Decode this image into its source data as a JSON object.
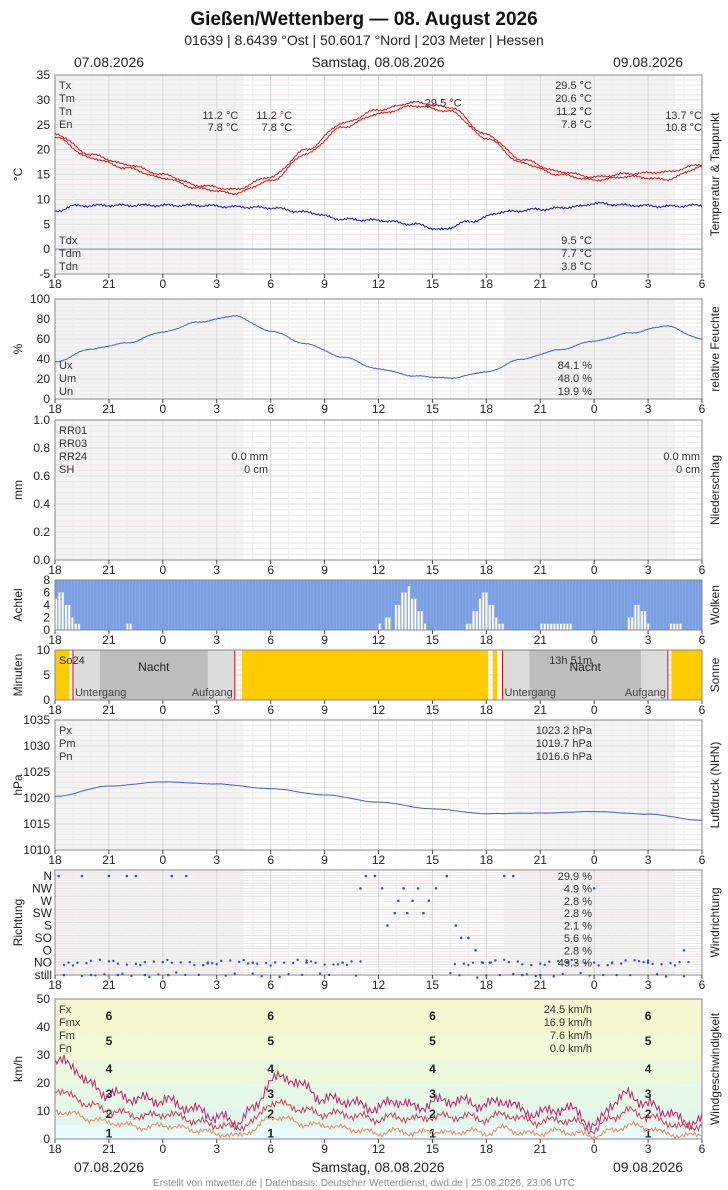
{
  "header": {
    "title": "Gießen/Wettenberg  —  08. August 2026",
    "subtitle": "01639  |  8.6439 °Ost  |  50.6017 °Nord  |  203 Meter  |  Hessen",
    "date_left": "07.08.2026",
    "date_center": "Samstag, 08.08.2026",
    "date_right": "09.08.2026"
  },
  "footer": "Erstellt von mtwetter.de | Datenbasis: Deutscher Wetterdienst, dwd.de | 25.08.2026, 23:06 UTC",
  "x_axis": {
    "start_hour": 18,
    "span_hours": 36,
    "tick_labels": [
      "18",
      "21",
      "0",
      "3",
      "6",
      "9",
      "12",
      "15",
      "18",
      "21",
      "0",
      "3",
      "6"
    ]
  },
  "colors": {
    "temp": "#e0191d",
    "dew": "#1717d0",
    "line": "#3a62d8",
    "cloud": "#7b9fe3",
    "sun": "#ffcc00",
    "night": "#bdbdbd",
    "wind_max": "#c71e6f",
    "wind_mean": "#d0405e",
    "wind_min": "#f08a5a"
  },
  "chart_data": [
    {
      "id": "temperature",
      "type": "line",
      "ylabel": "°C",
      "side_label": "Temperatur & Taupunkt",
      "ylim": [
        -5,
        35
      ],
      "yticks": [
        "35",
        "30",
        "25",
        "20",
        "15",
        "10",
        "5",
        "0",
        "-5"
      ],
      "legend_top": [
        "Tx",
        "Tm",
        "Tn",
        "En"
      ],
      "legend_bottom": [
        "Tdx",
        "Tdm",
        "Tdn"
      ],
      "annotations": [
        {
          "text": "29.5 °C",
          "hour": 15.6,
          "y": 29.5
        },
        {
          "text": "11.2 °C",
          "hour": 4.2,
          "y": 27
        },
        {
          "text": "11.2 °C",
          "hour": 7.2,
          "y": 27
        },
        {
          "text": "7.8 °C",
          "hour": 4.2,
          "y": 24.5
        },
        {
          "text": "7.8 °C",
          "hour": 7.2,
          "y": 24.5
        },
        {
          "text": "13.7 °C",
          "hour": 30,
          "y": 27
        },
        {
          "text": "10.8 °C",
          "hour": 30,
          "y": 24.5
        }
      ],
      "summary_top": [
        "29.5 °C",
        "20.6 °C",
        "11.2 °C",
        "7.8 °C"
      ],
      "summary_bottom": [
        "9.5 °C",
        "7.7 °C",
        "3.8 °C"
      ],
      "series": [
        {
          "name": "Tx",
          "hours": [
            -6,
            -4,
            -2,
            0,
            2,
            4,
            6,
            8,
            10,
            12,
            14,
            16,
            18,
            20,
            22,
            24,
            26,
            28,
            30
          ],
          "values": [
            23.2,
            19,
            17,
            15,
            12.8,
            12,
            14.5,
            20,
            25.3,
            28,
            29.5,
            28.5,
            23,
            18,
            15.6,
            14.5,
            15.2,
            15.5,
            17
          ]
        },
        {
          "name": "Tn",
          "hours": [
            -6,
            -4,
            -2,
            0,
            2,
            4,
            6,
            8,
            10,
            12,
            14,
            16,
            18,
            20,
            22,
            24,
            26,
            28,
            30
          ],
          "values": [
            22.5,
            18.3,
            16.3,
            14.3,
            12.2,
            11.2,
            13.7,
            19.2,
            24.5,
            27.2,
            28.8,
            27.7,
            22.3,
            17.3,
            15,
            13.9,
            14.6,
            14,
            16.5
          ]
        },
        {
          "name": "Td",
          "hours": [
            -6,
            -5,
            -3,
            0,
            2,
            4,
            6,
            8,
            10,
            12,
            14,
            15.5,
            17,
            19,
            21,
            23,
            24,
            26,
            28,
            30
          ],
          "values": [
            7.5,
            8.7,
            8.8,
            8.8,
            8.8,
            8.5,
            8.3,
            7.4,
            6,
            5.8,
            5,
            3.9,
            5.5,
            7.5,
            8,
            8.5,
            9.2,
            8.8,
            8.6,
            8.8
          ]
        }
      ]
    },
    {
      "id": "humidity",
      "type": "line",
      "ylabel": "%",
      "side_label": "relative Feuchte",
      "ylim": [
        0,
        100
      ],
      "yticks": [
        "100",
        "80",
        "60",
        "40",
        "20",
        "0"
      ],
      "legend": [
        "Ux",
        "Um",
        "Un"
      ],
      "summary": [
        "84.1 %",
        "48.0 %",
        "19.9 %"
      ],
      "series": [
        {
          "name": "U",
          "hours": [
            -6,
            -4,
            -2,
            0,
            2,
            4,
            6,
            8,
            10,
            12,
            14,
            16,
            18,
            20,
            22,
            24,
            26,
            28,
            30
          ],
          "values": [
            37,
            50,
            56,
            67,
            77,
            83,
            68,
            55,
            42,
            30,
            23,
            21,
            27,
            40,
            49,
            58,
            66,
            73,
            60
          ]
        }
      ]
    },
    {
      "id": "precipitation",
      "type": "line",
      "ylabel": "mm",
      "side_label": "Niederschlag",
      "ylim": [
        0,
        1
      ],
      "yticks": [
        "1.0",
        "0.8",
        "0.6",
        "0.4",
        "0.2",
        "0.0"
      ],
      "legend": [
        "RR01",
        "RR03",
        "RR24",
        "SH"
      ],
      "values_day1": [
        "0.0 mm",
        "0 cm"
      ],
      "values_day2": [
        "0.0 mm",
        "0 cm"
      ]
    },
    {
      "id": "clouds",
      "type": "bar",
      "ylabel": "Achtel",
      "side_label": "Wolken",
      "ylim": [
        0,
        8
      ],
      "yticks": [
        "8",
        "6",
        "4",
        "2",
        "0"
      ],
      "hours": [
        -6,
        -5.7,
        -5.4,
        -5.1,
        -4.8,
        -4.5,
        -3,
        -2,
        1,
        3,
        6,
        8,
        10,
        11.5,
        12,
        12.5,
        13,
        13.3,
        13.6,
        13.9,
        14.2,
        14.5,
        15,
        16,
        17,
        17.3,
        17.6,
        17.9,
        18.2,
        18.5,
        18.8,
        19,
        20,
        21,
        21.3,
        21.6,
        21.9,
        22.2,
        22.5,
        23,
        24,
        25,
        26,
        26.3,
        26.6,
        26.9,
        27.2,
        28,
        28.3,
        28.6
      ],
      "values": [
        5,
        6,
        4,
        2,
        1,
        0,
        0,
        1,
        0,
        0,
        0,
        0,
        0,
        0,
        1,
        2,
        4,
        6,
        7,
        5,
        3,
        1,
        0,
        0,
        1,
        3,
        5,
        6,
        4,
        2,
        1,
        0,
        0,
        1,
        1,
        1,
        1,
        1,
        1,
        0,
        0,
        0,
        2,
        4,
        3,
        1,
        0,
        0,
        1,
        1
      ]
    },
    {
      "id": "sunshine",
      "type": "bar",
      "ylabel": "Minuten",
      "side_label": "Sonne",
      "ylim": [
        0,
        10
      ],
      "yticks": [
        "10",
        "5",
        "0"
      ],
      "legend": [
        "So24"
      ],
      "sun_total": "13h 51m",
      "night_label": "Nacht",
      "sunset_label": "Untergang",
      "sunrise_label": "Aufgang",
      "sunset_hours": [
        -5.0,
        18.9
      ],
      "sunrise_hours": [
        4.0,
        28.1
      ],
      "sun_intervals": [
        [
          -6,
          -5.2
        ],
        [
          4.4,
          18.1
        ],
        [
          18.35,
          18.6
        ],
        [
          28.3,
          30
        ]
      ]
    },
    {
      "id": "pressure",
      "type": "line",
      "ylabel": "hPa",
      "side_label": "Luftdruck (NHN)",
      "ylim": [
        1010,
        1035
      ],
      "yticks": [
        "1035",
        "1030",
        "1025",
        "1020",
        "1015",
        "1010"
      ],
      "legend": [
        "Px",
        "Pm",
        "Pn"
      ],
      "summary": [
        "1023.2 hPa",
        "1019.7 hPa",
        "1016.6 hPa"
      ],
      "series": [
        {
          "name": "P",
          "hours": [
            -6,
            -3,
            0,
            3,
            6,
            9,
            12,
            15,
            18,
            21,
            24,
            27,
            30
          ],
          "values": [
            1020.3,
            1022.3,
            1023.1,
            1022.7,
            1021.8,
            1020.6,
            1019.2,
            1017.9,
            1017,
            1017.1,
            1017.4,
            1016.9,
            1015.7
          ]
        }
      ]
    },
    {
      "id": "wind_direction",
      "type": "scatter",
      "ylabel": "Richtung",
      "side_label": "Windrichtung",
      "categories": [
        "N",
        "NW",
        "W",
        "SW",
        "S",
        "SO",
        "O",
        "NO",
        "still"
      ],
      "summary": [
        "29.9 %",
        "4.9 %",
        "2.8 %",
        "2.8 %",
        "2.1 %",
        "5.6 %",
        "2.8 %",
        "49.3 %"
      ],
      "points": [
        {
          "hour": -5.8,
          "dir": 0
        },
        {
          "hour": -4.5,
          "dir": 0
        },
        {
          "hour": -3,
          "dir": 0
        },
        {
          "hour": -2,
          "dir": 0
        },
        {
          "hour": -1.5,
          "dir": 0
        },
        {
          "hour": 0.5,
          "dir": 0
        },
        {
          "hour": 1.3,
          "dir": 0
        },
        {
          "hour": -5.5,
          "dir": 8
        },
        {
          "hour": -4.0,
          "dir": 8
        },
        {
          "hour": -2.5,
          "dir": 8
        },
        {
          "hour": -1.0,
          "dir": 8
        },
        {
          "hour": 0.3,
          "dir": 8
        },
        {
          "hour": 2.5,
          "dir": 7
        },
        {
          "hour": 5,
          "dir": 7
        },
        {
          "hour": 8,
          "dir": 7
        },
        {
          "hour": 10,
          "dir": 7
        },
        {
          "hour": 11,
          "dir": 1
        },
        {
          "hour": 11.3,
          "dir": 0
        },
        {
          "hour": 11.8,
          "dir": 0
        },
        {
          "hour": 12.2,
          "dir": 1
        },
        {
          "hour": 12.5,
          "dir": 4
        },
        {
          "hour": 12.9,
          "dir": 3
        },
        {
          "hour": 13.1,
          "dir": 2
        },
        {
          "hour": 13.4,
          "dir": 1
        },
        {
          "hour": 13.6,
          "dir": 3
        },
        {
          "hour": 13.9,
          "dir": 2
        },
        {
          "hour": 14.2,
          "dir": 1
        },
        {
          "hour": 14.5,
          "dir": 3
        },
        {
          "hour": 14.8,
          "dir": 2
        },
        {
          "hour": 15.2,
          "dir": 1
        },
        {
          "hour": 15.8,
          "dir": 0
        },
        {
          "hour": 16.3,
          "dir": 4
        },
        {
          "hour": 16.6,
          "dir": 5
        },
        {
          "hour": 17.0,
          "dir": 5
        },
        {
          "hour": 17.4,
          "dir": 6
        },
        {
          "hour": 17.8,
          "dir": 7
        },
        {
          "hour": 18.2,
          "dir": 7
        },
        {
          "hour": 19,
          "dir": 0
        },
        {
          "hour": 19.5,
          "dir": 0
        },
        {
          "hour": 20,
          "dir": 8
        },
        {
          "hour": 21,
          "dir": 8
        },
        {
          "hour": 22.5,
          "dir": 7
        },
        {
          "hour": 24,
          "dir": 1
        },
        {
          "hour": 25,
          "dir": 7
        },
        {
          "hour": 27,
          "dir": 7
        },
        {
          "hour": 29,
          "dir": 6
        }
      ]
    },
    {
      "id": "wind_speed",
      "type": "line",
      "ylabel": "km/h",
      "side_label": "Windgeschwindigkeit",
      "ylim": [
        0,
        50
      ],
      "yticks": [
        "50",
        "40",
        "30",
        "20",
        "10",
        "0"
      ],
      "legend": [
        "Fx",
        "Fmx",
        "Fm",
        "Fn"
      ],
      "summary": [
        "24.5 km/h",
        "16.9 km/h",
        "7.6 km/h",
        "0.0 km/h"
      ],
      "beaufort": [
        "6",
        "5",
        "4",
        "3",
        "2",
        "1"
      ],
      "series": [
        {
          "name": "Fx",
          "hours": [
            -6,
            -5,
            -4,
            -3,
            -2,
            -1,
            0,
            1,
            2,
            3,
            4,
            5,
            6,
            7,
            8,
            9,
            10,
            11,
            12,
            13,
            14,
            15,
            16,
            17,
            18,
            19,
            20,
            21,
            22,
            23,
            24,
            25,
            26,
            27,
            28,
            29,
            30
          ],
          "values": [
            28,
            26,
            19,
            16,
            15,
            14,
            14,
            12,
            10,
            8,
            6,
            10,
            21,
            22,
            18,
            14,
            14,
            12,
            11,
            14,
            11,
            13,
            14,
            13,
            12,
            14,
            10,
            9,
            11,
            10,
            4,
            13,
            16,
            12,
            10,
            6,
            7
          ]
        },
        {
          "name": "Fm",
          "hours": [
            -6,
            -5,
            -4,
            -3,
            -2,
            -1,
            0,
            1,
            2,
            3,
            4,
            5,
            6,
            7,
            8,
            9,
            10,
            11,
            12,
            13,
            14,
            15,
            16,
            17,
            18,
            19,
            20,
            21,
            22,
            23,
            24,
            25,
            26,
            27,
            28,
            29,
            30
          ],
          "values": [
            18,
            15,
            12,
            10,
            9,
            8,
            9,
            8,
            6,
            5,
            4,
            6,
            13,
            12,
            10,
            9,
            9,
            8,
            7,
            8,
            7,
            8,
            8,
            8,
            7,
            9,
            7,
            6,
            7,
            6,
            3,
            8,
            10,
            8,
            6,
            4,
            5
          ]
        },
        {
          "name": "Fn",
          "hours": [
            -6,
            -5,
            -4,
            -3,
            -2,
            -1,
            0,
            1,
            2,
            3,
            4,
            5,
            6,
            7,
            8,
            9,
            10,
            11,
            12,
            13,
            14,
            15,
            16,
            17,
            18,
            19,
            20,
            21,
            22,
            23,
            24,
            25,
            26,
            27,
            28,
            29,
            30
          ],
          "values": [
            10,
            9,
            7,
            6,
            5,
            4,
            5,
            4,
            3,
            2,
            1,
            3,
            8,
            7,
            5,
            5,
            4,
            3,
            2,
            3,
            2,
            3,
            2,
            3,
            2,
            4,
            2,
            2,
            3,
            2,
            1,
            3,
            5,
            4,
            2,
            1,
            2
          ]
        }
      ]
    }
  ]
}
